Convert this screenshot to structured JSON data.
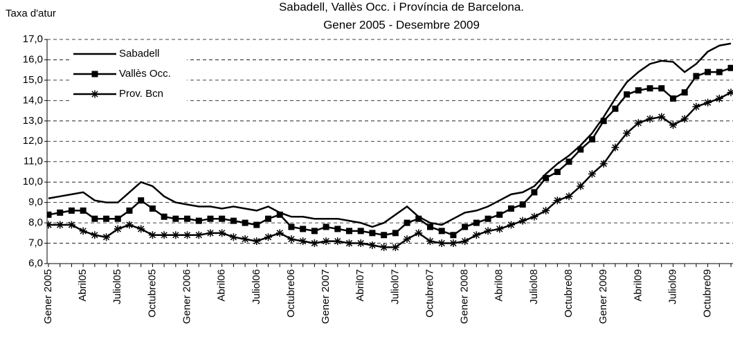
{
  "chart_data": {
    "type": "line",
    "title": "Sabadell, Vallès Occ. i Província de Barcelona.",
    "subtitle": "Gener 2005 - Desembre 2009",
    "y_label": "Taxa d'atur",
    "categories": [
      "Gener 2005",
      null,
      null,
      "Abril05",
      null,
      null,
      "Juliol05",
      null,
      null,
      "Octubre05",
      null,
      null,
      "Gener 2006",
      null,
      null,
      "Abril06",
      null,
      null,
      "Juliol06",
      null,
      null,
      "Octubre06",
      null,
      null,
      "Gener 2007",
      null,
      null,
      "Abril07",
      null,
      null,
      "Juliol07",
      null,
      null,
      "Octubre07",
      null,
      null,
      "Gener 2008",
      null,
      null,
      "Abril08",
      null,
      null,
      "Juliol08",
      null,
      null,
      "Octubre08",
      null,
      null,
      "Gener 2009",
      null,
      null,
      "Abril09",
      null,
      null,
      "Juliol09",
      null,
      null,
      "Octubre09",
      null,
      null
    ],
    "series": [
      {
        "name": "Sabadell",
        "color": "#000000",
        "marker": "none",
        "values": [
          9.2,
          9.3,
          9.4,
          9.5,
          9.1,
          9.0,
          9.0,
          9.5,
          10.0,
          9.8,
          9.3,
          9.0,
          8.9,
          8.8,
          8.8,
          8.7,
          8.8,
          8.7,
          8.6,
          8.8,
          8.5,
          8.3,
          8.3,
          8.2,
          8.2,
          8.2,
          8.1,
          8.0,
          7.8,
          8.0,
          8.4,
          8.8,
          8.3,
          8.0,
          7.9,
          8.2,
          8.5,
          8.6,
          8.8,
          9.1,
          9.4,
          9.5,
          9.8,
          10.4,
          10.9,
          11.3,
          11.8,
          12.4,
          13.2,
          14.1,
          14.9,
          15.4,
          15.8,
          15.95,
          15.9,
          15.4,
          15.8,
          16.4,
          16.7,
          16.8
        ]
      },
      {
        "name": "Vallès Occ.",
        "color": "#000000",
        "marker": "square",
        "values": [
          8.4,
          8.5,
          8.6,
          8.6,
          8.2,
          8.2,
          8.2,
          8.6,
          9.1,
          8.7,
          8.3,
          8.2,
          8.2,
          8.1,
          8.2,
          8.2,
          8.1,
          8.0,
          7.9,
          8.2,
          8.4,
          7.8,
          7.7,
          7.6,
          7.8,
          7.7,
          7.6,
          7.6,
          7.5,
          7.4,
          7.5,
          8.0,
          8.2,
          7.8,
          7.6,
          7.4,
          7.8,
          8.0,
          8.2,
          8.4,
          8.7,
          8.9,
          9.5,
          10.2,
          10.5,
          11.0,
          11.6,
          12.1,
          13.0,
          13.6,
          14.3,
          14.5,
          14.6,
          14.6,
          14.1,
          14.4,
          15.2,
          15.4,
          15.4,
          15.6
        ]
      },
      {
        "name": "Prov. Bcn",
        "color": "#000000",
        "marker": "star",
        "values": [
          7.9,
          7.9,
          7.9,
          7.6,
          7.4,
          7.3,
          7.7,
          7.9,
          7.7,
          7.4,
          7.4,
          7.4,
          7.4,
          7.4,
          7.5,
          7.5,
          7.3,
          7.2,
          7.1,
          7.3,
          7.5,
          7.2,
          7.1,
          7.0,
          7.1,
          7.1,
          7.0,
          7.0,
          6.9,
          6.8,
          6.8,
          7.2,
          7.5,
          7.1,
          7.0,
          7.0,
          7.1,
          7.4,
          7.6,
          7.7,
          7.9,
          8.1,
          8.3,
          8.6,
          9.1,
          9.3,
          9.8,
          10.4,
          10.9,
          11.7,
          12.4,
          12.9,
          13.1,
          13.2,
          12.8,
          13.1,
          13.7,
          13.9,
          14.1,
          14.4
        ]
      }
    ],
    "ylim": [
      6,
      17
    ],
    "yticks": [
      {
        "value": 6,
        "label": "6,0"
      },
      {
        "value": 7,
        "label": "7,0"
      },
      {
        "value": 8,
        "label": "8,0"
      },
      {
        "value": 9,
        "label": "9,0"
      },
      {
        "value": 10,
        "label": "10,0"
      },
      {
        "value": 11,
        "label": "11,0"
      },
      {
        "value": 12,
        "label": "12,0"
      },
      {
        "value": 13,
        "label": "13,0"
      },
      {
        "value": 14,
        "label": "14,0"
      },
      {
        "value": 15,
        "label": "15,0"
      },
      {
        "value": 16,
        "label": "16,0"
      },
      {
        "value": 17,
        "label": "17,0"
      }
    ],
    "grid": true,
    "legend": "upper left"
  }
}
